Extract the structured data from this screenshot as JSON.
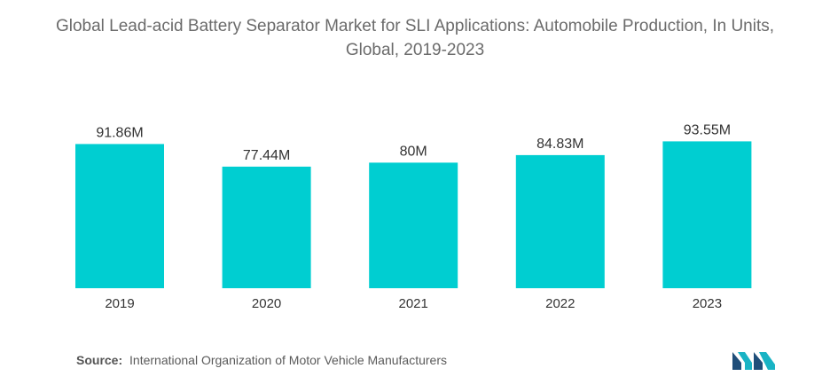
{
  "title": "Global Lead-acid Battery Separator Market for SLI Applications: Automobile Production, In Units, Global, 2019-2023",
  "source": {
    "label": "Source:",
    "text": "International Organization of Motor Vehicle Manufacturers"
  },
  "colors": {
    "bar": "#00CED1",
    "text": "#333333",
    "title": "#6b6b6b",
    "logo_dark": "#1f4e79",
    "logo_teal": "#19b3c4"
  },
  "logo": {
    "icon": "mordor-intelligence-logo-icon"
  },
  "chart_data": {
    "type": "bar",
    "title": "Global Lead-acid Battery Separator Market for SLI Applications: Automobile Production, In Units, Global, 2019-2023",
    "xlabel": "",
    "ylabel": "",
    "categories": [
      "2019",
      "2020",
      "2021",
      "2022",
      "2023"
    ],
    "values": [
      91.86,
      77.44,
      80,
      84.83,
      93.55
    ],
    "value_labels": [
      "91.86M",
      "77.44M",
      "80M",
      "84.83M",
      "93.55M"
    ],
    "ylim": [
      0,
      100
    ],
    "grid": false,
    "legend": "none"
  }
}
